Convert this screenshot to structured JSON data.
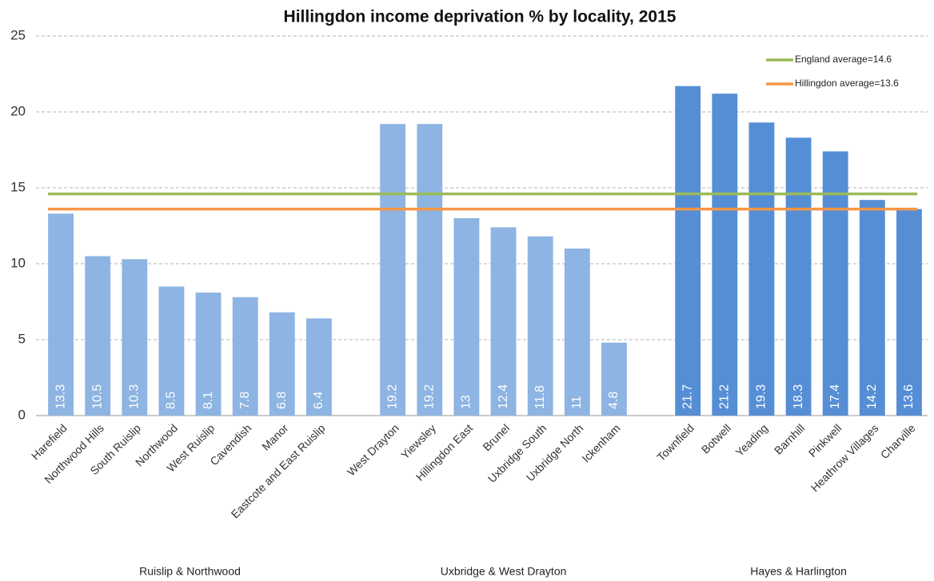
{
  "chart_data": {
    "type": "bar",
    "title": "Hillingdon income deprivation % by locality, 2015",
    "categories": [
      "Harefield",
      "Northwood Hills",
      "South Ruislip",
      "Northwood",
      "West Ruislip",
      "Cavendish",
      "Manor",
      "Eastcote and East Ruislip",
      null,
      "West Drayton",
      "Yiewsley",
      "Hillingdon East",
      "Brunel",
      "Uxbridge South",
      "Uxbridge North",
      "Ickenham",
      null,
      "Townfield",
      "Botwell",
      "Yeading",
      "Barnhill",
      "Pinkwell",
      "Heathrow Villages",
      "Charville"
    ],
    "series": [
      {
        "name": "Ruislip & Northwood",
        "color": "#8db4e2",
        "values": [
          13.3,
          10.5,
          10.3,
          8.5,
          8.1,
          7.8,
          6.8,
          6.4,
          null,
          null,
          null,
          null,
          null,
          null,
          null,
          null,
          null,
          null,
          null,
          null,
          null,
          null,
          null,
          null
        ]
      },
      {
        "name": "Uxbridge & West Drayton",
        "color": "#8db4e2",
        "values": [
          null,
          null,
          null,
          null,
          null,
          null,
          null,
          null,
          null,
          19.2,
          19.2,
          13,
          12.4,
          11.8,
          11,
          4.8,
          null,
          null,
          null,
          null,
          null,
          null,
          null,
          null
        ]
      },
      {
        "name": "Hayes & Harlington",
        "color": "#558ed5",
        "values": [
          null,
          null,
          null,
          null,
          null,
          null,
          null,
          null,
          null,
          null,
          null,
          null,
          null,
          null,
          null,
          null,
          null,
          21.7,
          21.2,
          19.3,
          18.3,
          17.4,
          14.2,
          13.6
        ]
      }
    ],
    "reference_lines": [
      {
        "name": "England average=14.6",
        "value": 14.6,
        "color": "#9bbb59"
      },
      {
        "name": "Hillingdon average=13.6",
        "value": 13.6,
        "color": "#f79646"
      }
    ],
    "ylim": [
      0,
      25
    ],
    "yticks": [
      0,
      5,
      10,
      15,
      20,
      25
    ],
    "grid": true,
    "legend": "top-right"
  }
}
